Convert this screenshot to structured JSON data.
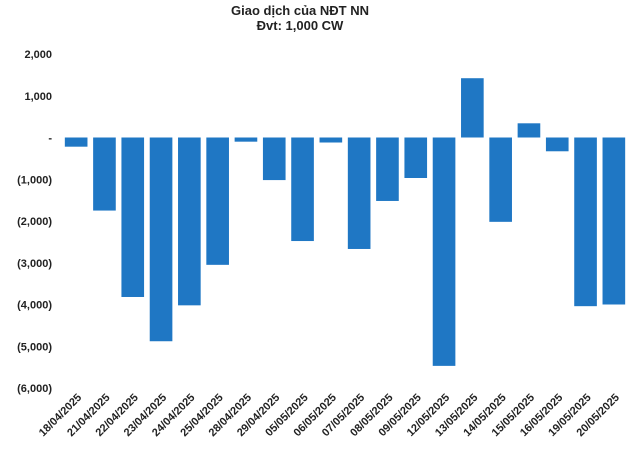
{
  "chart_data": {
    "type": "bar",
    "title": "Giao dịch của NĐT NN",
    "subtitle": "Đvt: 1,000 CW",
    "xlabel": "",
    "ylabel": "",
    "ylim": [
      -6000,
      2000
    ],
    "yticks": [
      2000,
      1000,
      0,
      -1000,
      -2000,
      -3000,
      -4000,
      -5000,
      -6000
    ],
    "ytick_labels": [
      "2,000",
      "1,000",
      "-",
      "(1,000)",
      "(2,000)",
      "(3,000)",
      "(4,000)",
      "(5,000)",
      "(6,000)"
    ],
    "grid": false,
    "bar_color": "#1f77c4",
    "categories": [
      "18/04/2025",
      "21/04/2025",
      "22/04/2025",
      "23/04/2025",
      "24/04/2025",
      "25/04/2025",
      "28/04/2025",
      "29/04/2025",
      "05/05/2025",
      "06/05/2025",
      "07/05/2025",
      "08/05/2025",
      "09/05/2025",
      "12/05/2025",
      "13/05/2025",
      "14/05/2025",
      "15/05/2025",
      "16/05/2025",
      "19/05/2025",
      "20/05/2025"
    ],
    "values": [
      -220,
      -1750,
      -3820,
      -4880,
      -4020,
      -3050,
      -100,
      -1020,
      -2480,
      -120,
      -2670,
      -1520,
      -970,
      -5470,
      1420,
      -2020,
      340,
      -330,
      -4040,
      -4000
    ]
  }
}
